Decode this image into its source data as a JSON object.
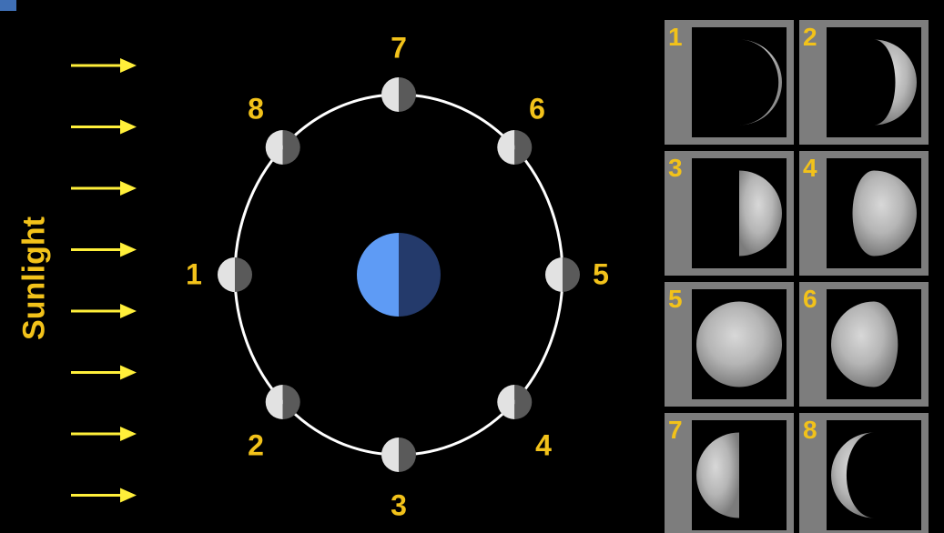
{
  "sunlight": {
    "label": "Sunlight",
    "arrow_count": 8,
    "color": "#ffef3a"
  },
  "label_color": "#f2c21a",
  "orbit": {
    "positions": [
      {
        "id": "1",
        "label": "1"
      },
      {
        "id": "2",
        "label": "2"
      },
      {
        "id": "3",
        "label": "3"
      },
      {
        "id": "4",
        "label": "4"
      },
      {
        "id": "5",
        "label": "5"
      },
      {
        "id": "6",
        "label": "6"
      },
      {
        "id": "7",
        "label": "7"
      },
      {
        "id": "8",
        "label": "8"
      }
    ],
    "earth": {
      "lit_color": "#5e9bf5",
      "dark_color": "#243a6b"
    }
  },
  "phase_panels": [
    {
      "label": "1",
      "illumination": 0.04,
      "side": "right"
    },
    {
      "label": "2",
      "illumination": 0.25,
      "side": "right"
    },
    {
      "label": "3",
      "illumination": 0.5,
      "side": "right"
    },
    {
      "label": "4",
      "illumination": 0.75,
      "side": "right"
    },
    {
      "label": "5",
      "illumination": 1.0,
      "side": "right"
    },
    {
      "label": "6",
      "illumination": 0.78,
      "side": "left"
    },
    {
      "label": "7",
      "illumination": 0.5,
      "side": "left"
    },
    {
      "label": "8",
      "illumination": 0.18,
      "side": "left"
    }
  ]
}
